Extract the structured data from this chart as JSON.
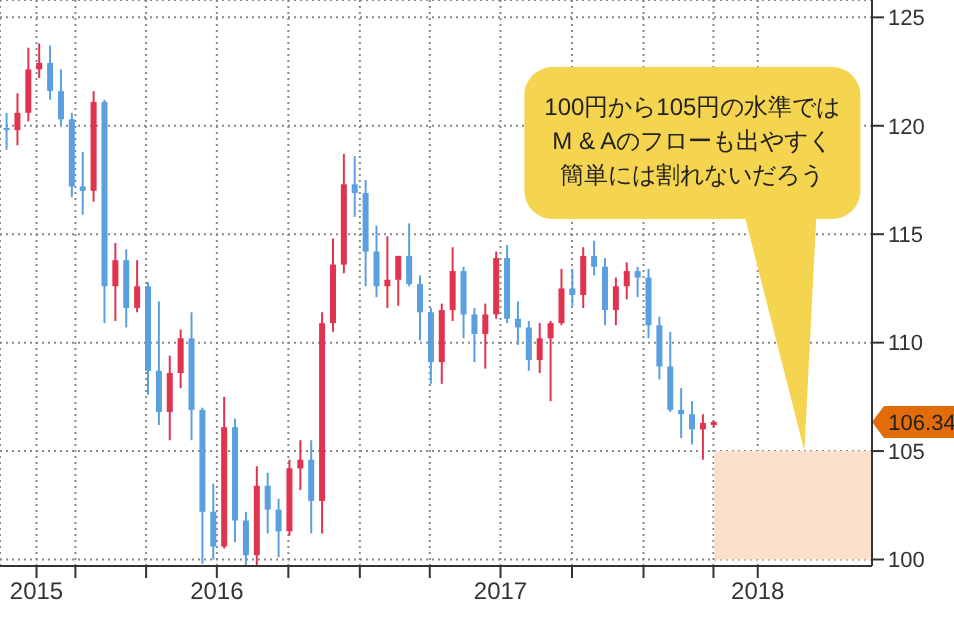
{
  "chart_data": {
    "type": "candlestick",
    "x": [
      "2015-10-05",
      "2015-10-19",
      "2015-11-02",
      "2015-11-16",
      "2015-11-30",
      "2015-12-14",
      "2015-12-28",
      "2016-01-11",
      "2016-01-25",
      "2016-02-08",
      "2016-02-22",
      "2016-03-07",
      "2016-03-21",
      "2016-04-04",
      "2016-04-18",
      "2016-05-02",
      "2016-05-16",
      "2016-05-30",
      "2016-06-13",
      "2016-06-27",
      "2016-07-11",
      "2016-07-25",
      "2016-08-08",
      "2016-08-22",
      "2016-09-05",
      "2016-09-19",
      "2016-10-03",
      "2016-10-17",
      "2016-10-31",
      "2016-11-14",
      "2016-11-28",
      "2016-12-12",
      "2016-12-26",
      "2017-01-09",
      "2017-01-23",
      "2017-02-06",
      "2017-02-20",
      "2017-03-06",
      "2017-03-20",
      "2017-04-03",
      "2017-04-17",
      "2017-05-01",
      "2017-05-15",
      "2017-05-29",
      "2017-06-12",
      "2017-06-26",
      "2017-07-10",
      "2017-07-24",
      "2017-08-07",
      "2017-08-21",
      "2017-09-04",
      "2017-09-18",
      "2017-10-02",
      "2017-10-16",
      "2017-10-30",
      "2017-11-13",
      "2017-11-27",
      "2017-12-11",
      "2017-12-25",
      "2018-01-08",
      "2018-01-22",
      "2018-02-05",
      "2018-02-19",
      "2018-03-05",
      "2018-03-19",
      "2018-04-02"
    ],
    "ohlc": [
      [
        119.9,
        120.6,
        118.9,
        119.8
      ],
      [
        119.8,
        121.5,
        119.1,
        120.6
      ],
      [
        120.6,
        123.6,
        120.2,
        122.6
      ],
      [
        122.6,
        123.8,
        122.2,
        122.9
      ],
      [
        122.9,
        123.7,
        121.2,
        121.6
      ],
      [
        121.6,
        122.6,
        120.0,
        120.3
      ],
      [
        120.3,
        120.6,
        116.7,
        117.2
      ],
      [
        117.2,
        118.8,
        115.9,
        117.0
      ],
      [
        117.0,
        121.6,
        116.5,
        121.1
      ],
      [
        121.1,
        121.2,
        110.9,
        112.6
      ],
      [
        112.6,
        114.6,
        111.0,
        113.8
      ],
      [
        113.8,
        114.3,
        110.7,
        111.6
      ],
      [
        111.6,
        113.8,
        111.4,
        112.6
      ],
      [
        112.6,
        112.8,
        107.6,
        108.7
      ],
      [
        108.7,
        111.9,
        106.2,
        106.8
      ],
      [
        106.8,
        109.4,
        105.5,
        108.6
      ],
      [
        108.6,
        110.6,
        107.9,
        110.2
      ],
      [
        110.2,
        111.4,
        105.5,
        106.9
      ],
      [
        106.9,
        107.0,
        99.8,
        102.2
      ],
      [
        102.2,
        103.5,
        100.0,
        100.6
      ],
      [
        100.6,
        107.5,
        100.5,
        106.1
      ],
      [
        106.1,
        106.5,
        100.8,
        101.8
      ],
      [
        101.8,
        102.2,
        99.6,
        100.2
      ],
      [
        100.2,
        104.3,
        99.5,
        103.4
      ],
      [
        103.4,
        104.0,
        101.2,
        102.3
      ],
      [
        102.3,
        102.8,
        100.1,
        101.3
      ],
      [
        101.3,
        104.6,
        101.1,
        104.2
      ],
      [
        104.2,
        105.5,
        103.2,
        104.6
      ],
      [
        104.6,
        105.5,
        101.2,
        102.7
      ],
      [
        102.7,
        111.4,
        101.2,
        110.9
      ],
      [
        110.9,
        114.8,
        110.5,
        113.6
      ],
      [
        113.6,
        118.7,
        113.2,
        117.3
      ],
      [
        117.3,
        118.6,
        115.8,
        116.9
      ],
      [
        116.9,
        117.5,
        112.6,
        114.2
      ],
      [
        114.2,
        115.4,
        112.1,
        112.6
      ],
      [
        112.6,
        114.9,
        111.6,
        112.9
      ],
      [
        112.9,
        114.0,
        111.7,
        114.0
      ],
      [
        114.0,
        115.5,
        112.6,
        112.7
      ],
      [
        112.7,
        113.1,
        110.1,
        111.4
      ],
      [
        111.4,
        111.6,
        108.1,
        109.1
      ],
      [
        109.1,
        111.8,
        108.1,
        111.5
      ],
      [
        111.5,
        114.4,
        111.0,
        113.3
      ],
      [
        113.3,
        113.5,
        110.2,
        111.3
      ],
      [
        111.3,
        111.6,
        109.1,
        110.4
      ],
      [
        110.4,
        111.8,
        108.8,
        111.3
      ],
      [
        111.3,
        114.2,
        111.1,
        113.9
      ],
      [
        113.9,
        114.5,
        110.9,
        111.1
      ],
      [
        111.1,
        111.9,
        109.9,
        110.7
      ],
      [
        110.7,
        111.0,
        108.7,
        109.2
      ],
      [
        109.2,
        110.9,
        108.6,
        110.2
      ],
      [
        110.2,
        111.0,
        107.3,
        110.9
      ],
      [
        110.9,
        113.4,
        110.8,
        112.5
      ],
      [
        112.5,
        113.4,
        111.7,
        112.2
      ],
      [
        112.2,
        114.4,
        111.6,
        114.0
      ],
      [
        114.0,
        114.7,
        113.1,
        113.5
      ],
      [
        113.5,
        113.9,
        110.8,
        111.5
      ],
      [
        111.5,
        113.0,
        110.8,
        112.6
      ],
      [
        112.6,
        113.7,
        112.0,
        113.3
      ],
      [
        113.3,
        113.5,
        112.1,
        113.0
      ],
      [
        113.0,
        113.4,
        110.2,
        110.8
      ],
      [
        110.8,
        111.2,
        108.3,
        108.9
      ],
      [
        108.9,
        110.5,
        106.8,
        106.9
      ],
      [
        106.9,
        107.9,
        105.6,
        106.7
      ],
      [
        106.7,
        107.3,
        105.3,
        106.0
      ],
      [
        106.0,
        106.7,
        104.6,
        106.3
      ],
      [
        106.2,
        106.4,
        106.1,
        106.34
      ]
    ],
    "colors": [
      "#5a9fe0",
      "#e0334f",
      "#e0334f",
      "#e0334f",
      "#5a9fe0",
      "#5a9fe0",
      "#5a9fe0",
      "#5a9fe0",
      "#e0334f",
      "#5a9fe0",
      "#e0334f",
      "#5a9fe0",
      "#e0334f",
      "#5a9fe0",
      "#5a9fe0",
      "#e0334f",
      "#e0334f",
      "#5a9fe0",
      "#5a9fe0",
      "#5a9fe0",
      "#e0334f",
      "#5a9fe0",
      "#5a9fe0",
      "#e0334f",
      "#5a9fe0",
      "#5a9fe0",
      "#e0334f",
      "#e0334f",
      "#5a9fe0",
      "#e0334f",
      "#e0334f",
      "#e0334f",
      "#5a9fe0",
      "#5a9fe0",
      "#5a9fe0",
      "#e0334f",
      "#e0334f",
      "#5a9fe0",
      "#5a9fe0",
      "#5a9fe0",
      "#e0334f",
      "#e0334f",
      "#5a9fe0",
      "#5a9fe0",
      "#e0334f",
      "#e0334f",
      "#5a9fe0",
      "#5a9fe0",
      "#5a9fe0",
      "#e0334f",
      "#e0334f",
      "#e0334f",
      "#5a9fe0",
      "#e0334f",
      "#5a9fe0",
      "#5a9fe0",
      "#e0334f",
      "#e0334f",
      "#5a9fe0",
      "#5a9fe0",
      "#5a9fe0",
      "#5a9fe0",
      "#5a9fe0",
      "#5a9fe0",
      "#e0334f",
      "#e0334f"
    ],
    "xlim": [
      "2015-09-26",
      "2018-10-22"
    ],
    "xticks": [
      {
        "value": "2015-11-12",
        "label": "2015"
      },
      {
        "value": "2016-01-01",
        "label": null
      },
      {
        "value": "2016-04-01",
        "label": null
      },
      {
        "value": "2016-07-01",
        "label": "2016"
      },
      {
        "value": "2016-10-01",
        "label": null
      },
      {
        "value": "2017-01-01",
        "label": null
      },
      {
        "value": "2017-04-01",
        "label": null
      },
      {
        "value": "2017-07-01",
        "label": "2017"
      },
      {
        "value": "2017-10-01",
        "label": null
      },
      {
        "value": "2018-01-01",
        "label": null
      },
      {
        "value": "2018-04-01",
        "label": null
      },
      {
        "value": "2018-05-28",
        "label": "2018"
      }
    ],
    "ylim": [
      99.7,
      125.8
    ],
    "yticks": [
      100,
      105,
      110,
      115,
      120,
      125
    ],
    "grid": true,
    "bands": [
      {
        "axis": "y",
        "from": 100,
        "to": 105,
        "color": "#fde0cc"
      }
    ],
    "annotations": [
      {
        "text": "100円から105円の水準ではM & Aのフローも出やすく簡単には割れないだろう",
        "x": "2018-07-27",
        "y": 105
      },
      "106.34"
    ]
  }
}
